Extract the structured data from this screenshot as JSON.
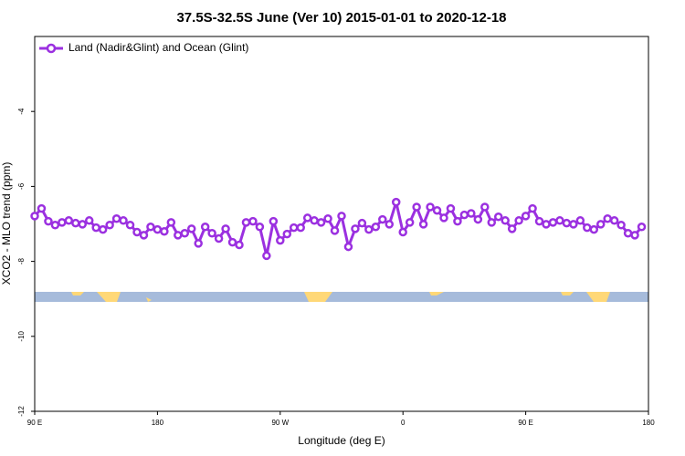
{
  "chart_data": {
    "type": "line",
    "title": "37.5S-32.5S June (Ver 10)   2015-01-01 to 2020-12-18",
    "x_label": "Longitude (deg E)",
    "y_label": "XCO2 - MLO trend (ppm)",
    "xlim": [
      90,
      540
    ],
    "xticks": [
      {
        "value": 90,
        "label": "90 E"
      },
      180,
      {
        "value": 270,
        "label": "90 W"
      },
      {
        "value": 360,
        "label": "0"
      },
      {
        "value": 450,
        "label": "90 E"
      },
      {
        "value": 540,
        "label": "180"
      }
    ],
    "ylim": [
      -12,
      -2
    ],
    "yticks": [
      -12,
      -10,
      -8,
      -6,
      -4
    ],
    "legend": "top-left",
    "x": [
      90,
      95,
      100,
      105,
      110,
      115,
      120,
      125,
      130,
      135,
      140,
      145,
      150,
      155,
      160,
      165,
      170,
      175,
      180,
      185,
      190,
      195,
      200,
      205,
      210,
      215,
      220,
      225,
      230,
      235,
      240,
      245,
      250,
      255,
      260,
      265,
      270,
      275,
      280,
      285,
      290,
      295,
      300,
      305,
      310,
      315,
      320,
      325,
      330,
      335,
      340,
      345,
      350,
      355,
      360,
      365,
      370,
      375,
      380,
      385,
      390,
      395,
      400,
      405,
      410,
      415,
      420,
      425,
      430,
      435,
      440,
      445,
      450,
      455,
      460,
      465,
      470,
      475,
      480,
      485,
      490,
      495,
      500,
      505,
      510,
      515,
      520,
      525,
      530,
      535
    ],
    "series": [
      {
        "name": "Land (Nadir&Glint) and Ocean (Glint)",
        "color": "#9b30e0",
        "values": [
          -6.79,
          -6.59,
          -6.93,
          -7.03,
          -6.96,
          -6.91,
          -6.98,
          -7.01,
          -6.91,
          -7.1,
          -7.15,
          -7.03,
          -6.86,
          -6.91,
          -7.03,
          -7.22,
          -7.3,
          -7.08,
          -7.15,
          -7.2,
          -6.96,
          -7.3,
          -7.25,
          -7.13,
          -7.52,
          -7.08,
          -7.25,
          -7.39,
          -7.13,
          -7.49,
          -7.56,
          -6.96,
          -6.93,
          -7.08,
          -7.85,
          -6.93,
          -7.44,
          -7.27,
          -7.1,
          -7.1,
          -6.84,
          -6.91,
          -6.96,
          -6.86,
          -7.18,
          -6.79,
          -7.61,
          -7.13,
          -6.98,
          -7.15,
          -7.08,
          -6.88,
          -7.01,
          -6.42,
          -7.22,
          -6.96,
          -6.55,
          -7.01,
          -6.55,
          -6.64,
          -6.84,
          -6.59,
          -6.93,
          -6.76,
          -6.72,
          -6.88,
          -6.55,
          -6.96,
          -6.81,
          -6.91,
          -7.13,
          -6.91,
          -6.79,
          -6.59,
          -6.93,
          -7.01,
          -6.96,
          -6.91,
          -6.98,
          -7.01,
          -6.91,
          -7.1,
          -7.15,
          -7.01,
          -6.86,
          -6.91,
          -7.03,
          -7.25,
          -7.3,
          -7.08
        ]
      }
    ]
  }
}
